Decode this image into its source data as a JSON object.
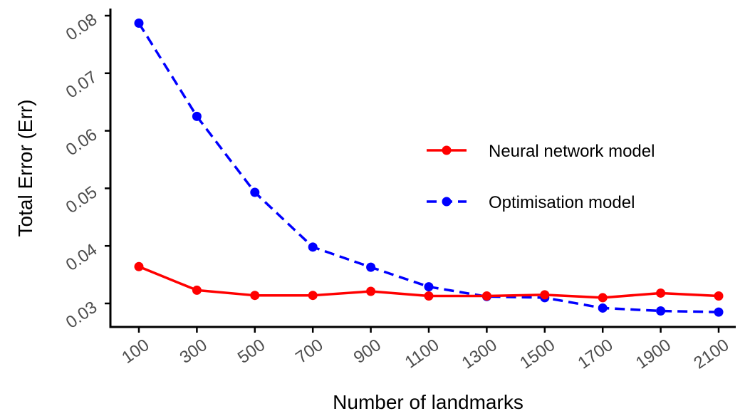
{
  "chart_data": {
    "type": "line",
    "title": "",
    "xlabel": "Number of landmarks",
    "ylabel": "Total Error (Err)",
    "x": [
      100,
      300,
      500,
      700,
      900,
      1100,
      1300,
      1500,
      1700,
      1900,
      2100
    ],
    "x_tick_labels": [
      "100",
      "300",
      "500",
      "700",
      "900",
      "1100",
      "1300",
      "1500",
      "1700",
      "1900",
      "2100"
    ],
    "y_ticks": [
      0.03,
      0.04,
      0.05,
      0.06,
      0.07,
      0.08
    ],
    "y_tick_labels": [
      "0.03",
      "0.04",
      "0.05",
      "0.06",
      "0.07",
      "0.08"
    ],
    "ylim": [
      0.026,
      0.0815
    ],
    "grid": false,
    "legend_position": "right",
    "series": [
      {
        "name": "Neural network model",
        "color": "#ff0000",
        "line_style": "solid",
        "values": [
          0.0364,
          0.0323,
          0.0314,
          0.0314,
          0.0321,
          0.0313,
          0.0313,
          0.0315,
          0.031,
          0.0318,
          0.0313
        ]
      },
      {
        "name": "Optimisation model",
        "color": "#0000ff",
        "line_style": "dashed",
        "values": [
          0.0787,
          0.0625,
          0.0493,
          0.0398,
          0.0363,
          0.0329,
          0.0312,
          0.031,
          0.0292,
          0.0287,
          0.0285
        ]
      }
    ]
  }
}
